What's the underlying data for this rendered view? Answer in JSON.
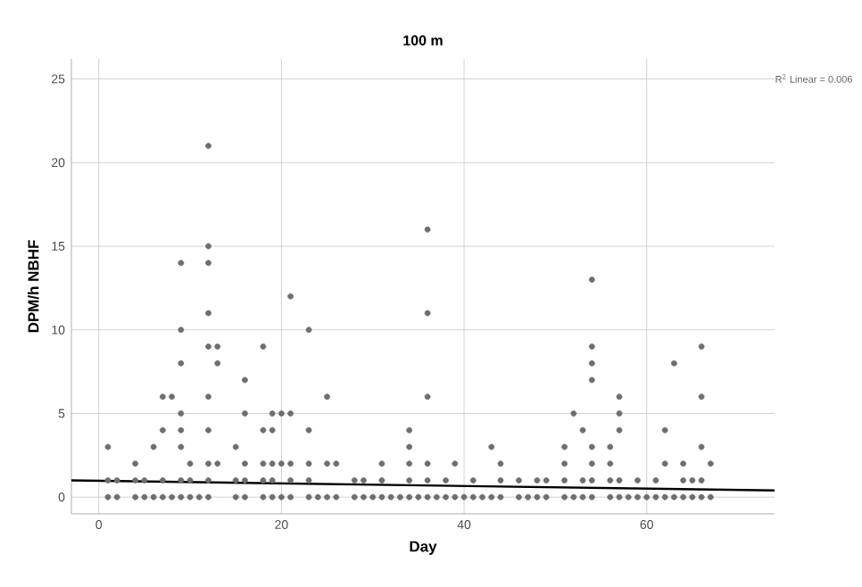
{
  "chart_data": {
    "type": "scatter",
    "title": "100 m",
    "xlabel": "Day",
    "ylabel": "DPM/h NBHF",
    "xlim": [
      -3,
      74
    ],
    "ylim": [
      -1,
      26.2
    ],
    "xticks": [
      0,
      20,
      40,
      60
    ],
    "yticks": [
      0,
      5,
      10,
      15,
      20,
      25
    ],
    "grid": true,
    "annotations": [
      "R$^{2}$ Linear = 0.006"
    ],
    "series": [
      {
        "color": "#6e6e6e",
        "marker": "circle",
        "x": [
          12,
          12,
          9,
          12,
          12,
          21,
          9,
          23,
          12,
          13,
          18,
          9,
          13,
          16,
          7,
          8,
          12,
          9,
          16,
          19,
          20,
          21,
          7,
          9,
          12,
          18,
          19,
          23,
          1,
          6,
          9,
          15,
          4,
          10,
          12,
          13,
          16,
          18,
          19,
          20,
          21,
          23,
          1,
          2,
          4,
          5,
          7,
          9,
          10,
          12,
          15,
          16,
          18,
          19,
          21,
          23,
          1,
          2,
          4,
          5,
          6,
          7,
          8,
          9,
          10,
          11,
          12,
          15,
          16,
          18,
          19,
          20,
          21,
          23,
          24,
          36,
          36,
          25,
          36,
          34,
          34,
          43,
          25,
          26,
          31,
          34,
          36,
          39,
          44,
          28,
          29,
          31,
          34,
          36,
          38,
          41,
          44,
          46,
          48,
          49,
          25,
          26,
          28,
          29,
          30,
          31,
          32,
          33,
          34,
          35,
          36,
          37,
          38,
          39,
          40,
          41,
          42,
          43,
          44,
          46,
          47,
          48,
          49,
          54,
          54,
          66,
          54,
          63,
          54,
          57,
          66,
          52,
          57,
          53,
          57,
          62,
          51,
          54,
          56,
          66,
          51,
          54,
          56,
          62,
          64,
          67,
          51,
          53,
          54,
          56,
          57,
          59,
          61,
          64,
          65,
          66,
          51,
          52,
          53,
          54,
          56,
          57,
          58,
          59,
          60,
          61,
          62,
          63,
          64,
          65,
          66,
          67
        ],
        "values": [
          21,
          15,
          14,
          14,
          11,
          12,
          10,
          10,
          9,
          9,
          9,
          8,
          8,
          7,
          6,
          6,
          6,
          5,
          5,
          5,
          5,
          5,
          4,
          4,
          4,
          4,
          4,
          4,
          3,
          3,
          3,
          3,
          2,
          2,
          2,
          2,
          2,
          2,
          2,
          2,
          2,
          2,
          1,
          1,
          1,
          1,
          1,
          1,
          1,
          1,
          1,
          1,
          1,
          1,
          1,
          1,
          0,
          0,
          0,
          0,
          0,
          0,
          0,
          0,
          0,
          0,
          0,
          0,
          0,
          0,
          0,
          0,
          0,
          0,
          0,
          16,
          11,
          6,
          6,
          4,
          3,
          3,
          2,
          2,
          2,
          2,
          2,
          2,
          2,
          1,
          1,
          1,
          1,
          1,
          1,
          1,
          1,
          1,
          1,
          1,
          0,
          0,
          0,
          0,
          0,
          0,
          0,
          0,
          0,
          0,
          0,
          0,
          0,
          0,
          0,
          0,
          0,
          0,
          0,
          0,
          0,
          0,
          0,
          13,
          9,
          9,
          8,
          8,
          7,
          6,
          6,
          5,
          5,
          4,
          4,
          4,
          3,
          3,
          3,
          3,
          2,
          2,
          2,
          2,
          2,
          2,
          1,
          1,
          1,
          1,
          1,
          1,
          1,
          1,
          1,
          1,
          0,
          0,
          0,
          0,
          0,
          0,
          0,
          0,
          0,
          0,
          0,
          0,
          0,
          0,
          0,
          0
        ]
      },
      {
        "type": "line",
        "color": "#000000",
        "marker": "none",
        "x": [
          -3,
          74
        ],
        "values": [
          1.0,
          0.4
        ]
      }
    ]
  }
}
